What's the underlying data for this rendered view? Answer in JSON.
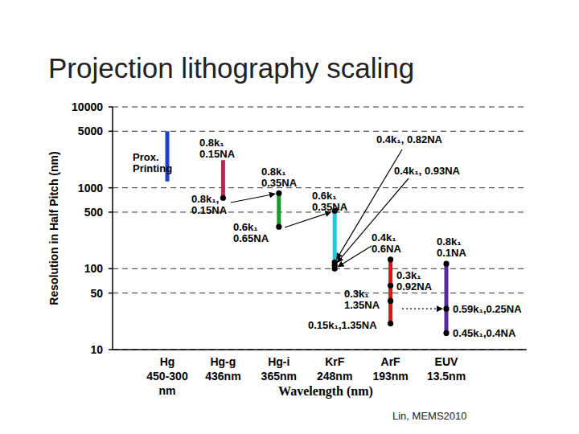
{
  "chart_data": {
    "type": "range",
    "title": "Projection lithography scaling",
    "y_label": "Resolution in Half Pitch (nm)",
    "x_label": "Wavelength (nm)",
    "source": "Lin, MEMS2010",
    "categories": [
      "Hg",
      "Hg-g",
      "Hg-i",
      "KrF",
      "ArF",
      "EUV"
    ],
    "wavelengths": [
      [
        "450-300",
        "nm"
      ],
      [
        "436nm"
      ],
      [
        "365nm"
      ],
      [
        "248nm"
      ],
      [
        "193nm"
      ],
      [
        "13.5nm"
      ]
    ],
    "log": "y",
    "grid": true,
    "ylim": [
      10,
      10000
    ],
    "yticks": [
      10,
      50,
      100,
      500,
      1000,
      5000,
      10000
    ],
    "bars": [
      {
        "color": "#1f3fd0",
        "high": 5000,
        "low": 1200,
        "label": [
          "Prox.",
          "Printing"
        ],
        "annotations": []
      },
      {
        "color": "#d01c4c",
        "high": 2200,
        "low": 750,
        "annotations": [
          {
            "value": 2200,
            "text": [
              "0.8k₁",
              "0.15NA"
            ]
          },
          {
            "value": 750,
            "text": [
              "0.8k₁,",
              "0.15NA"
            ],
            "marker": "circle"
          }
        ]
      },
      {
        "color": "#1a9a2a",
        "high": 860,
        "low": 330,
        "annotations": [
          {
            "value": 860,
            "text": [
              "0.8k₁",
              "0.35NA"
            ],
            "marker": "circle"
          },
          {
            "value": 330,
            "text": [
              "0.6k₁",
              "0.65NA"
            ],
            "marker": "circle"
          }
        ]
      },
      {
        "color": "#22c8e0",
        "high": 520,
        "low": 100,
        "annotations": [
          {
            "value": 520,
            "text": [
              "0.6k₁",
              "0.35NA"
            ],
            "marker": "circle"
          },
          {
            "value": 120,
            "text": [
              "0.4k₁, 0.82NA"
            ],
            "marker": "circle"
          },
          {
            "value": 110,
            "text": [
              "0.4k₁, 0.93NA"
            ],
            "marker": "circle"
          },
          {
            "value": 100,
            "text": [
              "0.4k₁",
              "0.6NA"
            ],
            "marker": "circle"
          }
        ]
      },
      {
        "color": "#e01414",
        "high": 130,
        "low": 21,
        "annotations": [
          {
            "value": 130,
            "marker": "circle"
          },
          {
            "value": 62,
            "text": [
              "0.3k₁",
              "0.92NA"
            ],
            "marker": "circle"
          },
          {
            "value": 40,
            "text": [
              "0.3k₁",
              "1.35NA"
            ],
            "marker": "circle"
          },
          {
            "value": 21,
            "text": [
              "0.15k₁,1.35NA"
            ],
            "marker": "circle"
          }
        ]
      },
      {
        "color": "#5a2a9a",
        "high": 115,
        "low": 16,
        "annotations": [
          {
            "value": 115,
            "text": [
              "0.8k₁",
              "0.1NA"
            ],
            "marker": "circle"
          },
          {
            "value": 32,
            "text": [
              "0.59k₁,0.25NA"
            ],
            "marker": "circle"
          },
          {
            "value": 16,
            "text": [
              "0.45k₁,0.4NA"
            ],
            "marker": "circle"
          }
        ]
      }
    ]
  }
}
